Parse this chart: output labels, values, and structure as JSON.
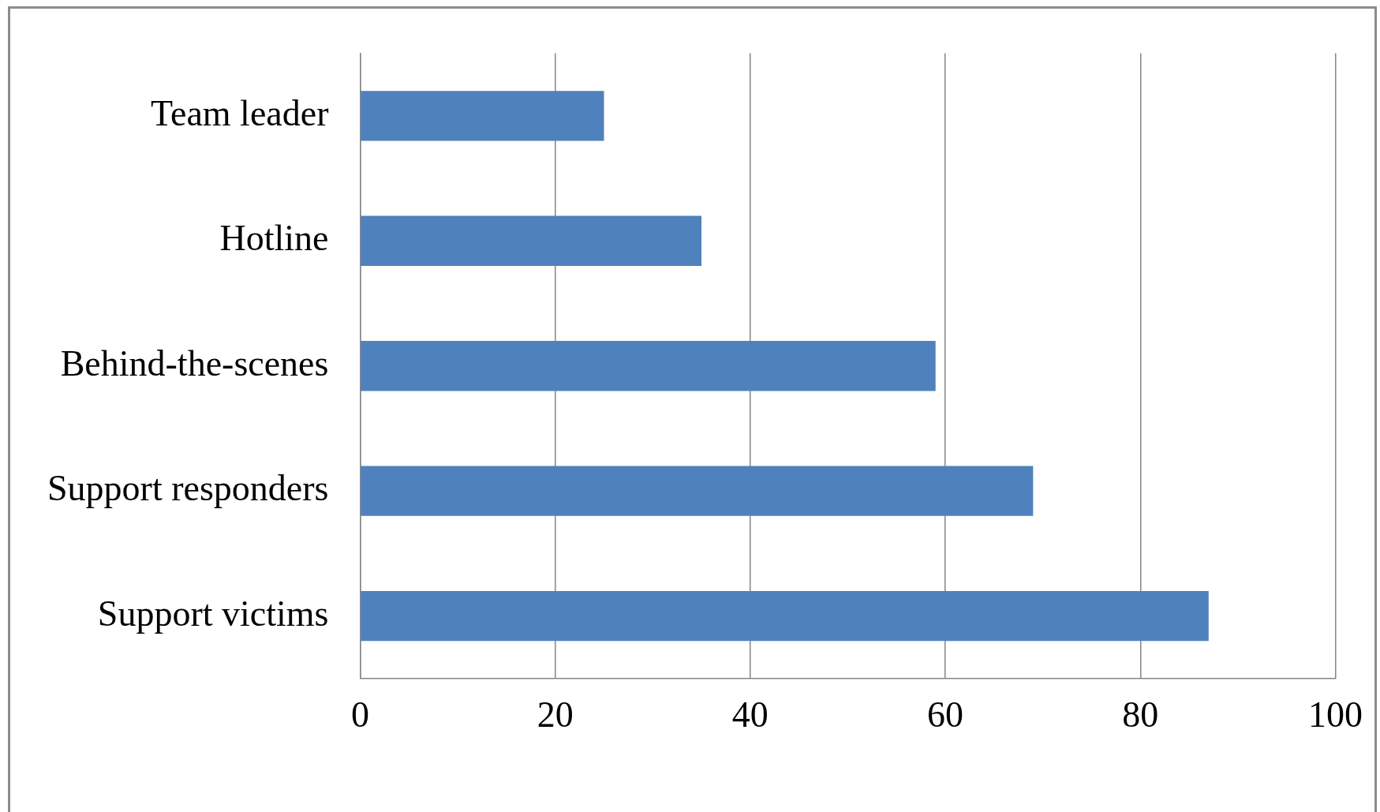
{
  "chart_data": {
    "type": "bar",
    "orientation": "horizontal",
    "categories": [
      "Team leader",
      "Hotline",
      "Behind-the-scenes",
      "Support responders",
      "Support victims"
    ],
    "values": [
      25,
      35,
      59,
      69,
      87
    ],
    "color": "#4f81bd",
    "xlim": [
      0,
      100
    ],
    "xticks": [
      0,
      20,
      40,
      60,
      80,
      100
    ],
    "grid": "x"
  }
}
